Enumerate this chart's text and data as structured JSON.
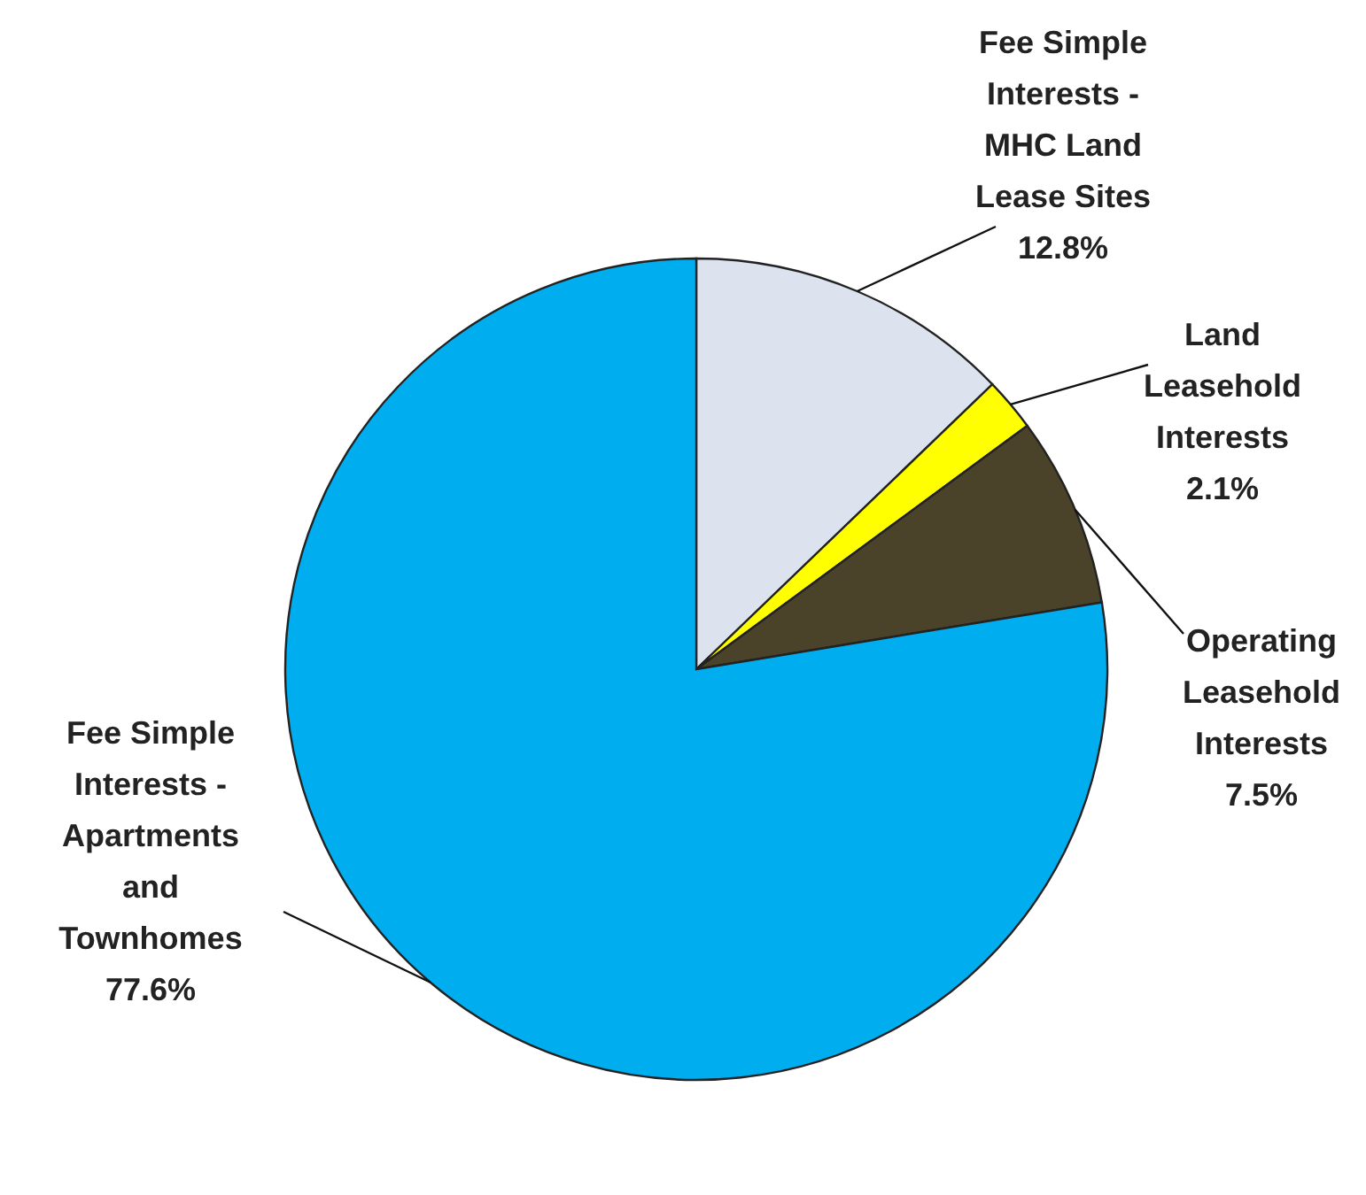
{
  "chart_data": {
    "type": "pie",
    "categories": [
      "Fee Simple Interests - MHC Land Lease Sites",
      "Land Leasehold Interests",
      "Operating Leasehold Interests",
      "Fee Simple Interests - Apartments and Townhomes"
    ],
    "values": [
      12.8,
      2.1,
      7.5,
      77.6
    ],
    "colors": [
      "#dce3ef",
      "#ffff00",
      "#4a4229",
      "#00aeef"
    ],
    "value_labels": [
      "12.8%",
      "2.1%",
      "7.5%",
      "77.6%"
    ]
  }
}
